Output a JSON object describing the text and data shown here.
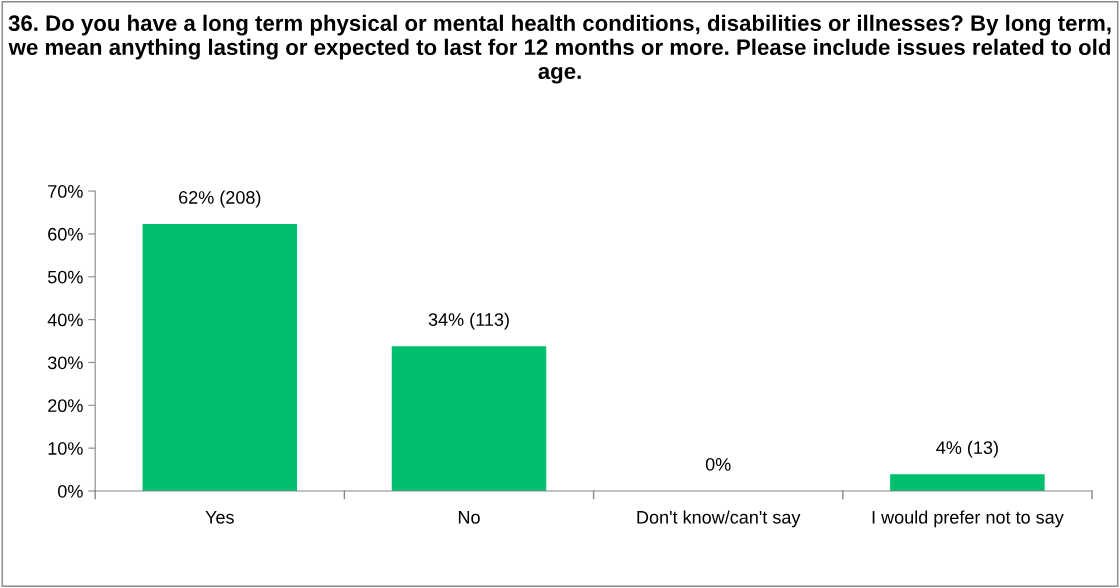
{
  "chart_data": {
    "type": "bar",
    "title": "36. Do you have a long term physical or mental health conditions, disabilities or illnesses? By long term, we mean anything lasting or expected to last for 12 months or more. Please include issues related to old age.",
    "categories": [
      "Yes",
      "No",
      "Don't know/can't say",
      "I would prefer not to say"
    ],
    "series": [
      {
        "color": "#00bf6f",
        "values": [
          62.3,
          33.8,
          0,
          3.9
        ],
        "value_labels": [
          "62% (208)",
          "34% (113)",
          "0%",
          "4% (13)"
        ]
      }
    ],
    "ylim": [
      0,
      70
    ],
    "yticks": [
      {
        "value": 0,
        "label": "0%"
      },
      {
        "value": 10,
        "label": "10%"
      },
      {
        "value": 20,
        "label": "20%"
      },
      {
        "value": 30,
        "label": "30%"
      },
      {
        "value": 40,
        "label": "40%"
      },
      {
        "value": 50,
        "label": "50%"
      },
      {
        "value": 60,
        "label": "60%"
      },
      {
        "value": 70,
        "label": "70%"
      }
    ],
    "grid": false,
    "legend": false
  }
}
